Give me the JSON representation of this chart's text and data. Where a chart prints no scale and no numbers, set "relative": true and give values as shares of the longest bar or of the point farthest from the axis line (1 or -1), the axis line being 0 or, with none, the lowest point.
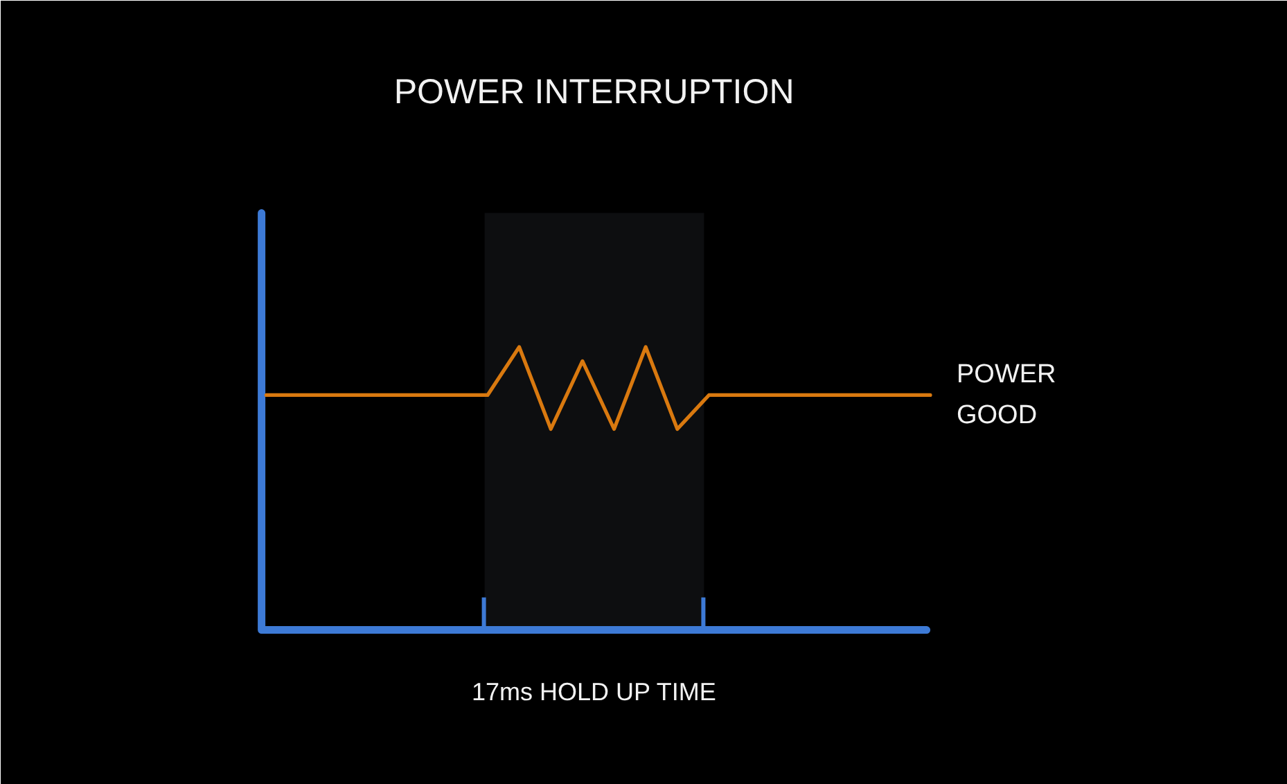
{
  "chart_data": {
    "type": "line",
    "title": "POWER INTERRUPTION",
    "relative": true,
    "categories": [
      null,
      null,
      null,
      null,
      null,
      null,
      null,
      null,
      null,
      null,
      null,
      null,
      null,
      null,
      null,
      null,
      null,
      null,
      null,
      null,
      null,
      null
    ],
    "series": [
      {
        "name": "POWER GOOD",
        "color": "#d9790f",
        "values": [
          0.83,
          0.83,
          0.83,
          0.83,
          0.83,
          0.83,
          0.83,
          0.83,
          1.0,
          0.71,
          0.95,
          0.71,
          1.0,
          0.71,
          0.83,
          0.83,
          0.83,
          0.83,
          0.83,
          0.83,
          0.83,
          0.83
        ]
      }
    ],
    "annotations": [
      "17ms HOLD UP TIME"
    ]
  }
}
